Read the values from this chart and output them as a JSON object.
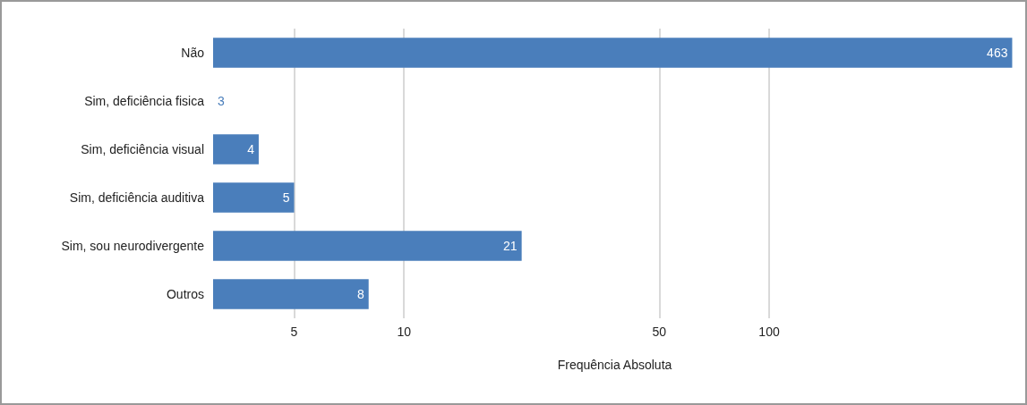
{
  "chart_data": {
    "type": "bar",
    "orientation": "horizontal",
    "log": "x",
    "xlabel": "Frequência Absoluta",
    "categories": [
      "Não",
      "Sim, deficiência fisica",
      "Sim, deficiência visual",
      "Sim, deficiência auditiva",
      "Sim, sou neurodivergente",
      "Outros"
    ],
    "values": [
      463,
      3,
      4,
      5,
      21,
      8
    ],
    "color": "#4a7ebb",
    "xlim": [
      3,
      475
    ],
    "xticks": [
      5,
      10,
      50,
      100
    ],
    "grid": "x",
    "data_labels": true
  }
}
